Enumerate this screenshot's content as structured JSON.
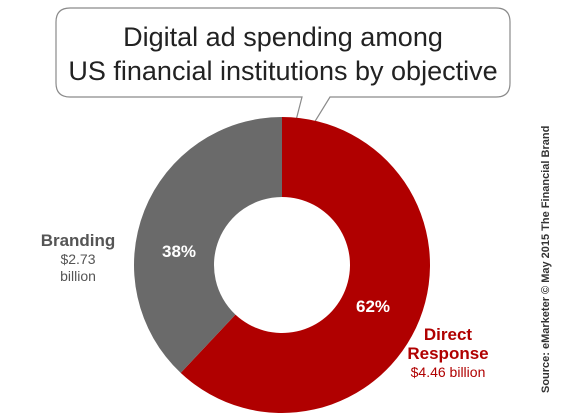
{
  "chart_data": {
    "type": "pie",
    "variant": "donut",
    "title_lines": [
      "Digital ad spending among",
      "US financial institutions by objective"
    ],
    "slices": [
      {
        "label_lines": [
          "Direct",
          "Response"
        ],
        "value_text": "$4.46 billion",
        "value": 4.46,
        "percent": 62,
        "percent_text": "62%",
        "color": "#b00000",
        "label_color": "#b00000"
      },
      {
        "label_lines": [
          "Branding"
        ],
        "value_text_lines": [
          "$2.73",
          "billion"
        ],
        "value": 2.73,
        "percent": 38,
        "percent_text": "38%",
        "color": "#6a6a6a",
        "label_color": "#555555"
      }
    ],
    "source": "Source: eMarketer © May 2015 The Financial Brand"
  }
}
